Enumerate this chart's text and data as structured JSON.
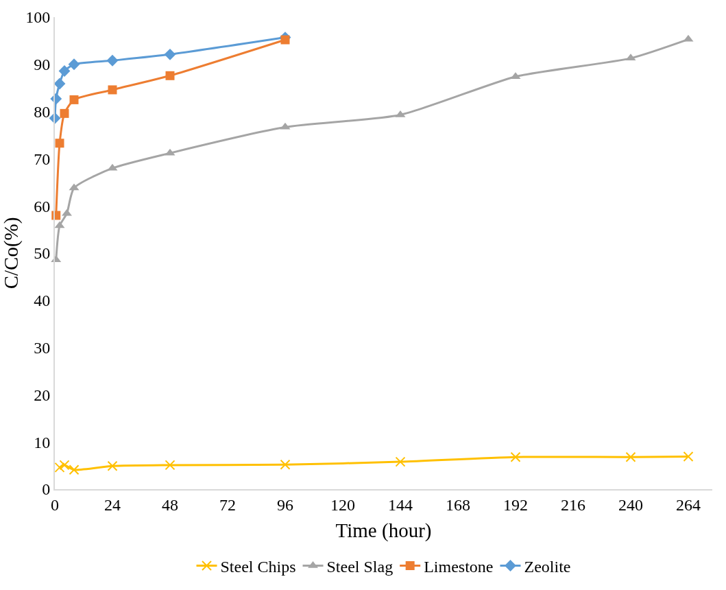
{
  "chart_data": {
    "type": "line",
    "xlabel": "Time (hour)",
    "ylabel": "C/Co(%)",
    "xlim": [
      0,
      274
    ],
    "xticks": [
      0,
      24,
      48,
      72,
      96,
      120,
      144,
      168,
      192,
      216,
      240,
      264
    ],
    "ylim": [
      0,
      100
    ],
    "yticks": [
      0,
      10,
      20,
      30,
      40,
      50,
      60,
      70,
      80,
      90,
      100
    ],
    "legend": "bottom",
    "line_style": "solid",
    "series": [
      {
        "name": "Steel Chips",
        "color": "#ffc000",
        "marker": "cross",
        "x": [
          2,
          4,
          8,
          24,
          48,
          96,
          144,
          192,
          240,
          264
        ],
        "values": [
          4.6,
          5.1,
          4.1,
          4.9,
          5.1,
          5.2,
          5.8,
          6.8,
          6.8,
          6.9
        ]
      },
      {
        "name": "Steel Slag",
        "color": "#a5a5a5",
        "marker": "triangle",
        "x": [
          0.5,
          2,
          5,
          8,
          24,
          48,
          96,
          144,
          192,
          240,
          264
        ],
        "values": [
          48.6,
          55.8,
          58.4,
          63.8,
          68.0,
          71.2,
          76.7,
          79.3,
          87.4,
          91.3,
          95.3
        ]
      },
      {
        "name": "Limestone",
        "color": "#ed7d31",
        "marker": "square",
        "x": [
          0.5,
          2,
          4,
          8,
          24,
          48,
          96
        ],
        "values": [
          58.0,
          73.3,
          79.6,
          82.5,
          84.6,
          87.6,
          95.2
        ]
      },
      {
        "name": "Zeolite",
        "color": "#5b9bd5",
        "marker": "diamond",
        "x": [
          0,
          0.5,
          2,
          4,
          8,
          24,
          48,
          96
        ],
        "values": [
          78.6,
          82.7,
          85.9,
          88.6,
          90.0,
          90.8,
          92.1,
          95.7
        ]
      }
    ]
  }
}
